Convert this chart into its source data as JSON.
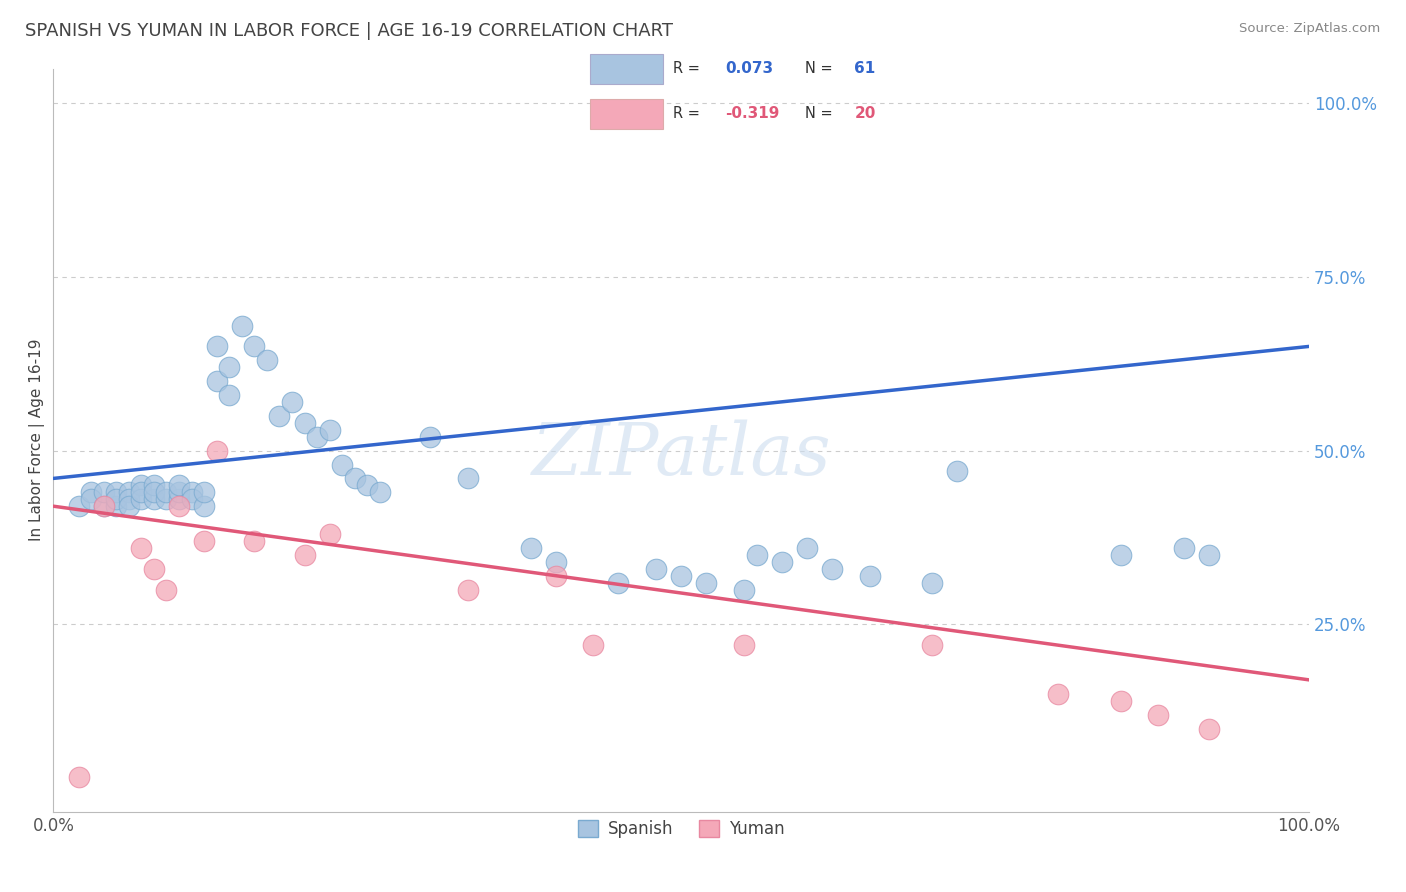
{
  "title": "SPANISH VS YUMAN IN LABOR FORCE | AGE 16-19 CORRELATION CHART",
  "source": "Source: ZipAtlas.com",
  "ylabel": "In Labor Force | Age 16-19",
  "xlim": [
    0,
    100
  ],
  "ylim": [
    -2,
    105
  ],
  "spanish_R": 0.073,
  "spanish_N": 61,
  "yuman_R": -0.319,
  "yuman_N": 20,
  "spanish_color": "#a8c4e0",
  "spanish_edge_color": "#7aaad0",
  "yuman_color": "#f4a8b8",
  "yuman_edge_color": "#e888a0",
  "spanish_line_color": "#3366cc",
  "yuman_line_color": "#e05878",
  "legend_spanish_label": "Spanish",
  "legend_yuman_label": "Yuman",
  "watermark": "ZIPatlas",
  "spanish_line_y0": 46.0,
  "spanish_line_y100": 65.0,
  "yuman_line_y0": 42.0,
  "yuman_line_y100": 17.0,
  "spanish_x": [
    2,
    3,
    3,
    4,
    4,
    5,
    5,
    5,
    6,
    6,
    6,
    7,
    7,
    7,
    8,
    8,
    8,
    9,
    9,
    10,
    10,
    10,
    11,
    11,
    12,
    12,
    13,
    13,
    14,
    14,
    15,
    16,
    17,
    18,
    19,
    20,
    21,
    22,
    23,
    24,
    25,
    26,
    30,
    33,
    38,
    40,
    45,
    48,
    50,
    52,
    55,
    56,
    58,
    60,
    62,
    65,
    70,
    72,
    85,
    90,
    92
  ],
  "spanish_y": [
    42,
    44,
    43,
    42,
    44,
    42,
    44,
    43,
    44,
    43,
    42,
    45,
    43,
    44,
    43,
    45,
    44,
    43,
    44,
    43,
    44,
    45,
    44,
    43,
    42,
    44,
    60,
    65,
    62,
    58,
    68,
    65,
    63,
    55,
    57,
    54,
    52,
    53,
    48,
    46,
    45,
    44,
    52,
    46,
    36,
    34,
    31,
    33,
    32,
    31,
    30,
    35,
    34,
    36,
    33,
    32,
    31,
    47,
    35,
    36,
    35
  ],
  "yuman_x": [
    2,
    4,
    7,
    8,
    9,
    10,
    12,
    13,
    16,
    20,
    22,
    33,
    40,
    43,
    55,
    70,
    80,
    85,
    88,
    92
  ],
  "yuman_y": [
    3,
    42,
    36,
    33,
    30,
    42,
    37,
    50,
    37,
    35,
    38,
    30,
    32,
    22,
    22,
    22,
    15,
    14,
    12,
    10
  ]
}
